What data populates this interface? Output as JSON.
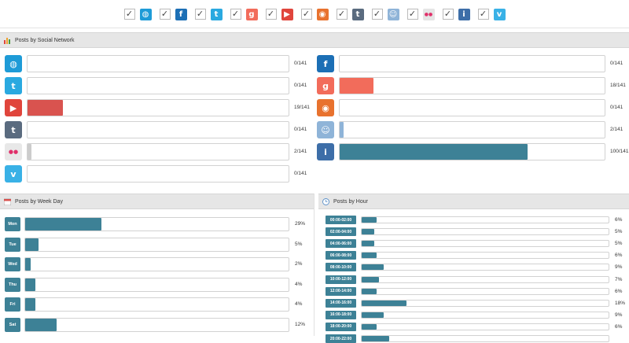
{
  "filters": [
    {
      "name": "web",
      "glyph": "◍",
      "color": "#1e9bd7",
      "checked": "✓"
    },
    {
      "name": "facebook",
      "glyph": "f",
      "color": "#1c6fb5",
      "checked": "✓"
    },
    {
      "name": "twitter",
      "glyph": "t",
      "color": "#2aa9e0",
      "checked": "✓"
    },
    {
      "name": "google-plus",
      "glyph": "g",
      "color": "#f26c5b",
      "checked": "✓"
    },
    {
      "name": "youtube",
      "glyph": "▶",
      "color": "#e0453c",
      "checked": "✓"
    },
    {
      "name": "blogger",
      "glyph": "◉",
      "color": "#e8722e",
      "checked": "✓"
    },
    {
      "name": "tumblr",
      "glyph": "t",
      "color": "#5a6b7f",
      "checked": "✓"
    },
    {
      "name": "reddit",
      "glyph": "☺",
      "color": "#8fb4d8",
      "checked": "✓"
    },
    {
      "name": "flickr",
      "glyph": "●●",
      "color": "#e5e5e5",
      "checked": "✓"
    },
    {
      "name": "instapaper",
      "glyph": "i",
      "color": "#3d6ea8",
      "checked": "✓"
    },
    {
      "name": "vimeo",
      "glyph": "v",
      "color": "#39b1e6",
      "checked": "✓"
    }
  ],
  "network_panel": {
    "title": "Posts by Social Network",
    "rows": [
      {
        "network": "web",
        "glyph": "◍",
        "color": "#1e9bd7",
        "fill_color": "#1e9bd7",
        "value": 0,
        "total": 141,
        "label": "0/141"
      },
      {
        "network": "facebook",
        "glyph": "f",
        "color": "#1c6fb5",
        "fill_color": "#1c6fb5",
        "value": 0,
        "total": 141,
        "label": "0/141"
      },
      {
        "network": "twitter",
        "glyph": "t",
        "color": "#2aa9e0",
        "fill_color": "#2aa9e0",
        "value": 0,
        "total": 141,
        "label": "0/141"
      },
      {
        "network": "google-plus",
        "glyph": "g",
        "color": "#f26c5b",
        "fill_color": "#f26c5b",
        "value": 18,
        "total": 141,
        "label": "18/141"
      },
      {
        "network": "youtube",
        "glyph": "▶",
        "color": "#e0453c",
        "fill_color": "#d9534f",
        "value": 19,
        "total": 141,
        "label": "19/141"
      },
      {
        "network": "blogger",
        "glyph": "◉",
        "color": "#e8722e",
        "fill_color": "#e8722e",
        "value": 0,
        "total": 141,
        "label": "0/141"
      },
      {
        "network": "tumblr",
        "glyph": "t",
        "color": "#5a6b7f",
        "fill_color": "#5a6b7f",
        "value": 0,
        "total": 141,
        "label": "0/141"
      },
      {
        "network": "reddit",
        "glyph": "☺",
        "color": "#8fb4d8",
        "fill_color": "#8fb4d8",
        "value": 2,
        "total": 141,
        "label": "2/141"
      },
      {
        "network": "flickr",
        "glyph": "●●",
        "color": "#e8e8e8",
        "fill_color": "#cccccc",
        "value": 2,
        "total": 141,
        "label": "2/141"
      },
      {
        "network": "instapaper",
        "glyph": "i",
        "color": "#3d6ea8",
        "fill_color": "#3d8196",
        "value": 100,
        "total": 141,
        "label": "100/141"
      },
      {
        "network": "vimeo",
        "glyph": "v",
        "color": "#39b1e6",
        "fill_color": "#39b1e6",
        "value": 0,
        "total": 141,
        "label": "0/141"
      }
    ]
  },
  "weekday_panel": {
    "title": "Posts by Week Day",
    "rows": [
      {
        "day": "Mon",
        "pct": 29,
        "label": "29%"
      },
      {
        "day": "Tue",
        "pct": 5,
        "label": "5%"
      },
      {
        "day": "Wed",
        "pct": 2,
        "label": "2%"
      },
      {
        "day": "Thu",
        "pct": 4,
        "label": "4%"
      },
      {
        "day": "Fri",
        "pct": 4,
        "label": "4%"
      },
      {
        "day": "Sat",
        "pct": 12,
        "label": "12%"
      }
    ]
  },
  "hour_panel": {
    "title": "Posts by Hour",
    "rows": [
      {
        "range": "00:00-02:00",
        "pct": 6,
        "label": "6%"
      },
      {
        "range": "02:00-04:00",
        "pct": 5,
        "label": "5%"
      },
      {
        "range": "04:00-06:00",
        "pct": 5,
        "label": "5%"
      },
      {
        "range": "06:00-08:00",
        "pct": 6,
        "label": "6%"
      },
      {
        "range": "08:00-10:00",
        "pct": 9,
        "label": "9%"
      },
      {
        "range": "10:00-12:00",
        "pct": 7,
        "label": "7%"
      },
      {
        "range": "12:00-14:00",
        "pct": 6,
        "label": "6%"
      },
      {
        "range": "14:00-16:00",
        "pct": 18,
        "label": "18%"
      },
      {
        "range": "16:00-18:00",
        "pct": 9,
        "label": "9%"
      },
      {
        "range": "18:00-20:00",
        "pct": 6,
        "label": "6%"
      },
      {
        "range": "20:00-22:00",
        "pct": 11,
        "label": ""
      }
    ]
  },
  "colors": {
    "accent": "#3d8196",
    "header_bg": "#e6e6e6"
  }
}
